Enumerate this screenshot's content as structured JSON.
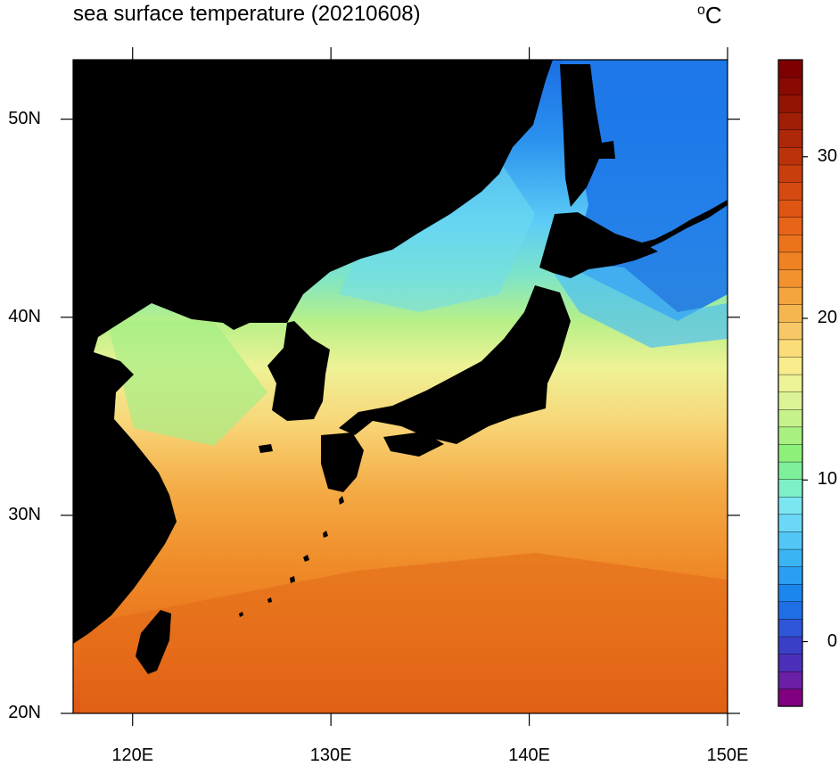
{
  "header": {
    "title": "sea surface temperature (20210608)",
    "units_symbol": "o",
    "units_letter": "C"
  },
  "map": {
    "region": "Japan and surrounding seas",
    "projection": "cylindrical equidistant",
    "lon_range": [
      117,
      150
    ],
    "lat_range": [
      20,
      53
    ],
    "land_color": "#000000",
    "lon_ticks": [
      {
        "value": 120,
        "label": "120E"
      },
      {
        "value": 130,
        "label": "130E"
      },
      {
        "value": 140,
        "label": "140E"
      },
      {
        "value": 150,
        "label": "150E"
      }
    ],
    "lat_ticks": [
      {
        "value": 20,
        "label": "20N"
      },
      {
        "value": 30,
        "label": "30N"
      },
      {
        "value": 40,
        "label": "40N"
      },
      {
        "value": 50,
        "label": "50N"
      }
    ]
  },
  "colorbar": {
    "min": -4,
    "max": 36,
    "labels": [
      {
        "value": 0,
        "label": "0"
      },
      {
        "value": 10,
        "label": "10"
      },
      {
        "value": 20,
        "label": "20"
      },
      {
        "value": 30,
        "label": "30"
      }
    ],
    "colors": [
      "#800080",
      "#6b1fa6",
      "#4b2fb8",
      "#3a3fc8",
      "#2f55d8",
      "#1e6fe6",
      "#1c86ef",
      "#2a9ef2",
      "#3bb4f3",
      "#52c7f5",
      "#6bd8f7",
      "#7be6f2",
      "#7df0c8",
      "#7ef09a",
      "#8cf07a",
      "#a8f080",
      "#c6f28c",
      "#dcf296",
      "#ecf296",
      "#f8ec8c",
      "#fadc78",
      "#f7c866",
      "#f5b650",
      "#f4a43e",
      "#f2922e",
      "#ef8222",
      "#ec721c",
      "#e86418",
      "#df5512",
      "#d44a10",
      "#c83e0c",
      "#bb330a",
      "#ad2808",
      "#a01e06",
      "#941404",
      "#880a02",
      "#7f0000"
    ]
  }
}
